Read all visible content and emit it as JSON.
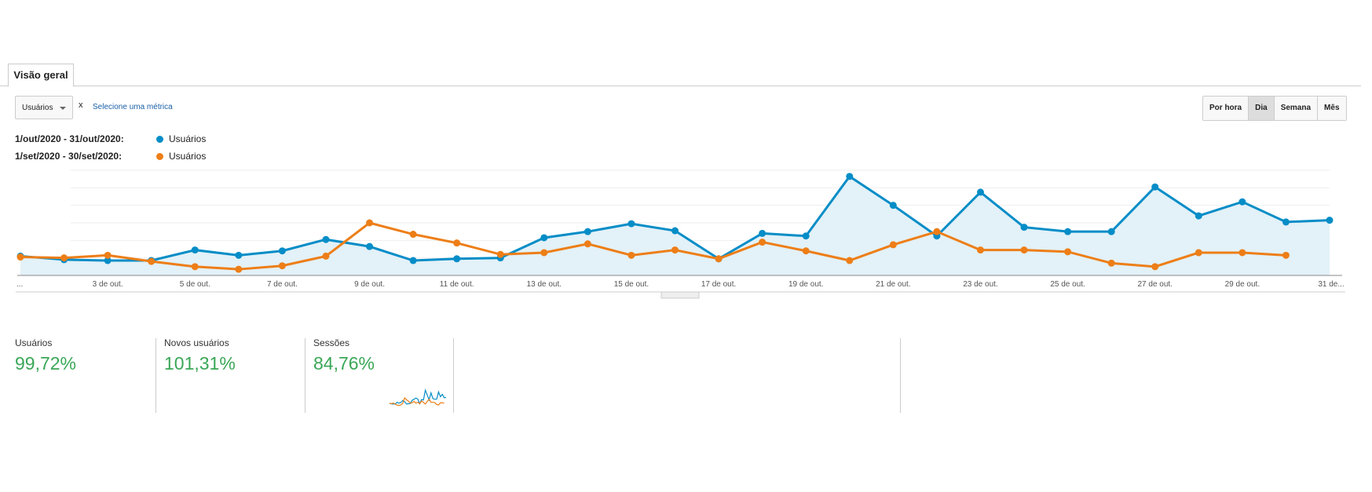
{
  "tab": "Visão geral",
  "metric_selector": "Usuários",
  "remove_metric": "x",
  "add_metric": "Selecione uma métrica",
  "granularity": [
    "Por hora",
    "Dia",
    "Semana",
    "Mês"
  ],
  "chart_data": {
    "type": "line",
    "categories": [
      "...",
      null,
      "3 de out.",
      null,
      "5 de out.",
      null,
      "7 de out.",
      null,
      "9 de out.",
      null,
      "11 de out.",
      null,
      "13 de out.",
      null,
      "15 de out.",
      null,
      "17 de out.",
      null,
      "19 de out.",
      null,
      "21 de out.",
      null,
      "23 de out.",
      null,
      "25 de out.",
      null,
      "27 de out.",
      null,
      "29 de out.",
      null,
      "31 de..."
    ],
    "series": [
      {
        "period": "1/out/2020 - 31/out/2020:",
        "name": "Usuários",
        "color": "#058dc7",
        "area": true,
        "values": [
          66,
          54,
          51,
          51,
          87,
          69,
          84,
          123,
          99,
          51,
          57,
          60,
          129,
          150,
          177,
          153,
          57,
          144,
          135,
          339,
          240,
          135,
          285,
          165,
          150,
          150,
          303,
          204,
          252,
          183,
          189
        ]
      },
      {
        "period": "1/set/2020 - 30/set/2020:",
        "name": "Usuários",
        "color": "#ed7e17",
        "area": false,
        "values": [
          63,
          60,
          69,
          48,
          30,
          21,
          33,
          66,
          180,
          141,
          111,
          72,
          78,
          108,
          69,
          87,
          57,
          114,
          84,
          51,
          105,
          150,
          87,
          87,
          81,
          42,
          30,
          78,
          78,
          69,
          null
        ]
      }
    ],
    "ylim": [
      0,
      360
    ],
    "grid": true
  },
  "scorecards": [
    {
      "label": "Usuários",
      "value": "99,72%"
    },
    {
      "label": "Novos usuários",
      "value": "101,31%"
    },
    {
      "label": "Sessões",
      "value": "84,76%"
    }
  ]
}
